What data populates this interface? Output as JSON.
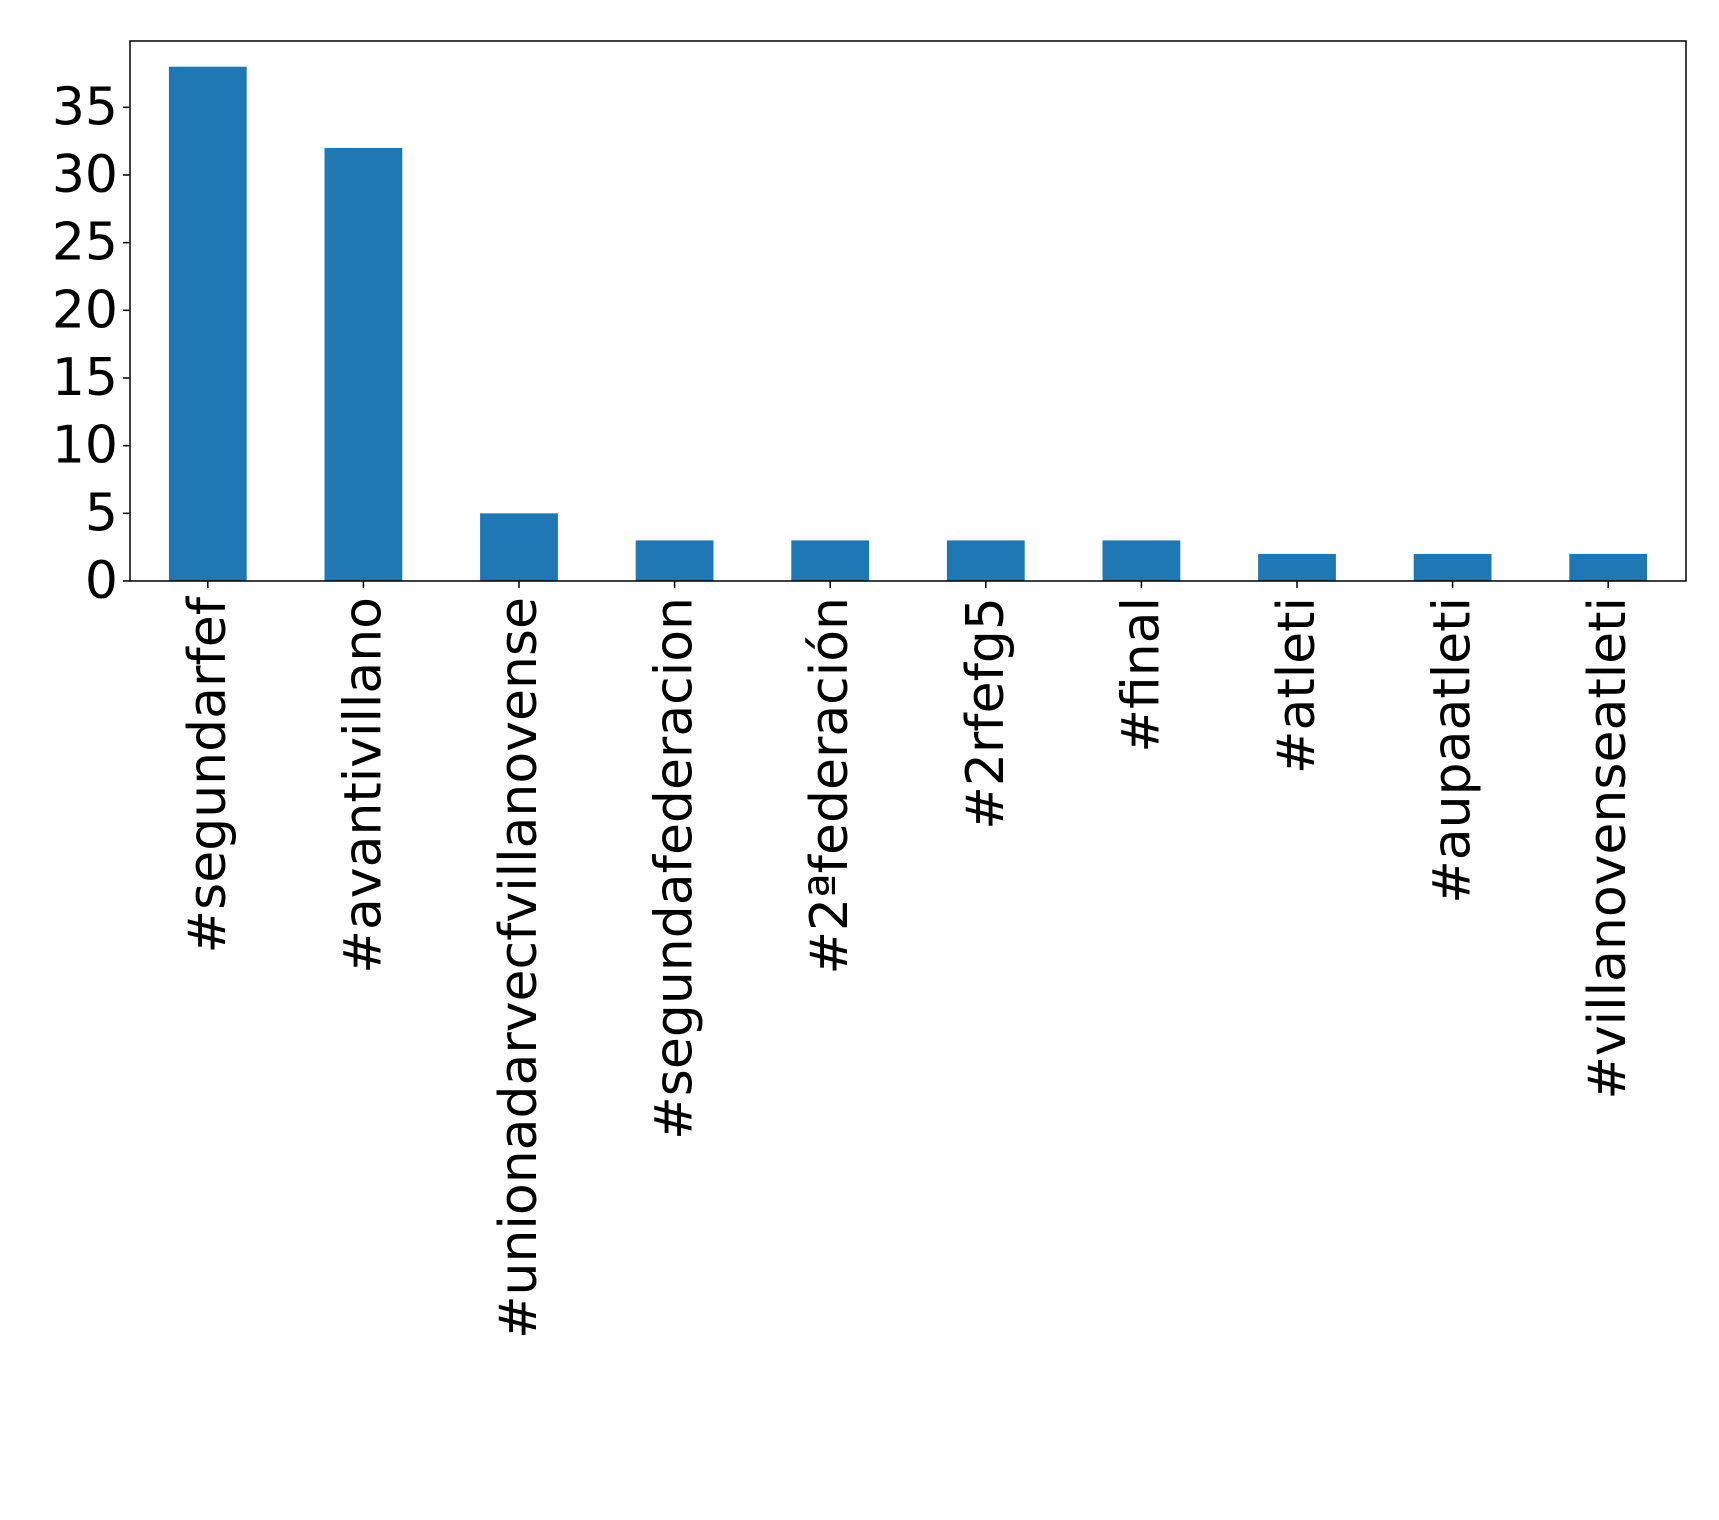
{
  "chart_data": {
    "type": "bar",
    "title": "",
    "xlabel": "",
    "ylabel": "",
    "categories": [
      "#segundarfef",
      "#avantivillano",
      "#unionadarvecfvillanovense",
      "#segundafederacion",
      "#2ªfederación",
      "#2rfefg5",
      "#final",
      "#atleti",
      "#aupaatleti",
      "#villanovenseatleti"
    ],
    "values": [
      38,
      32,
      5,
      3,
      3,
      3,
      3,
      2,
      2,
      2
    ],
    "ylim": [
      0,
      39.9
    ],
    "yticks": [
      "0",
      "5",
      "10",
      "15",
      "20",
      "25",
      "30",
      "35"
    ],
    "bar_color": "#1f77b4",
    "grid": false,
    "legend": "none"
  }
}
